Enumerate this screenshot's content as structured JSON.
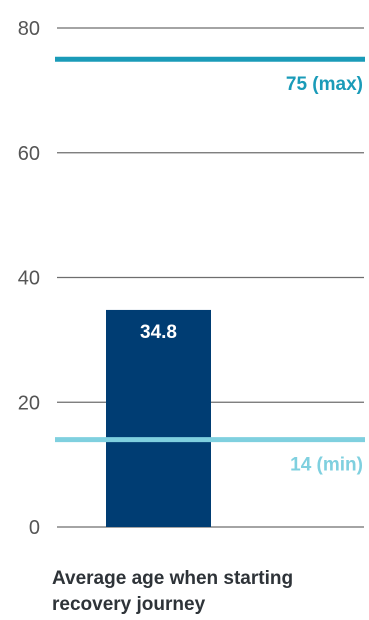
{
  "chart_data": {
    "type": "bar",
    "ylim": [
      0,
      80
    ],
    "yticks": [
      0,
      20,
      40,
      60,
      80
    ],
    "grid": true,
    "categories": [
      "Average age when starting recovery journey"
    ],
    "values": [
      34.8
    ],
    "value_labels": [
      "34.8"
    ],
    "xlabel": "Average age when starting recovery journey",
    "reference_lines": [
      {
        "value": 75,
        "label": "75 (max)",
        "color": "#1a9bb8"
      },
      {
        "value": 14,
        "label": "14 (min)",
        "color": "#7fd0df"
      }
    ],
    "colors": {
      "bar": "#003d73",
      "grid": "#6e6e6e",
      "tick_text": "#555555",
      "bar_label": "#ffffff"
    }
  }
}
